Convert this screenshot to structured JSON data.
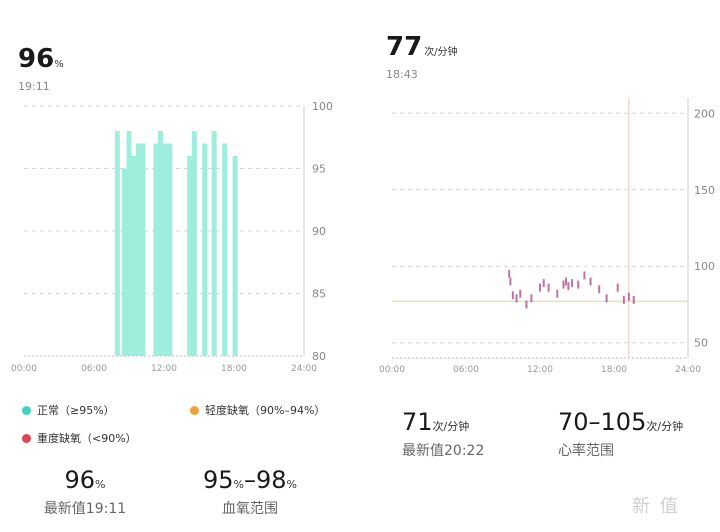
{
  "spo2": {
    "value": "96",
    "unit": "%",
    "time": "19:11",
    "legend": [
      {
        "label": "正常（≥95%）",
        "color": "#3dd6b8"
      },
      {
        "label": "轻度缺氧（90%–94%）",
        "color": "#f0a23a"
      },
      {
        "label": "重度缺氧（<90%）",
        "color": "#e0434f"
      }
    ],
    "stats": [
      {
        "value": "96",
        "unit": "%",
        "label": "最新值19:11"
      },
      {
        "value": "95",
        "unit": "%",
        "value2": "98",
        "unit2": "%",
        "label": "血氧范围"
      }
    ]
  },
  "heart": {
    "value": "77",
    "unit": "次/分钟",
    "time": "18:43",
    "stats": [
      {
        "value": "71",
        "unit": "次/分钟",
        "label": "最新值20:22"
      },
      {
        "value": "70–105",
        "unit": "次/分钟",
        "label": "心率范围"
      }
    ]
  },
  "watermark": "新 值",
  "chart_data": [
    {
      "type": "bar",
      "x_ticks": [
        "00:00",
        "06:00",
        "12:00",
        "18:00",
        "24:00"
      ],
      "y_ticks": [
        "80",
        "85",
        "90",
        "95",
        "100"
      ],
      "ylim": [
        80,
        100
      ],
      "xlim": [
        0,
        24
      ],
      "bar_color": "#9eeedd",
      "bars": [
        {
          "x": 8.0,
          "y": 98
        },
        {
          "x": 8.6,
          "y": 95
        },
        {
          "x": 9.0,
          "y": 98
        },
        {
          "x": 9.4,
          "y": 96
        },
        {
          "x": 9.8,
          "y": 97
        },
        {
          "x": 10.2,
          "y": 97
        },
        {
          "x": 11.3,
          "y": 97
        },
        {
          "x": 11.7,
          "y": 98
        },
        {
          "x": 12.1,
          "y": 97
        },
        {
          "x": 12.5,
          "y": 97
        },
        {
          "x": 14.2,
          "y": 96
        },
        {
          "x": 14.6,
          "y": 98
        },
        {
          "x": 15.5,
          "y": 97
        },
        {
          "x": 16.3,
          "y": 98
        },
        {
          "x": 17.2,
          "y": 97
        },
        {
          "x": 18.1,
          "y": 96
        }
      ]
    },
    {
      "type": "scatter",
      "x_ticks": [
        "00:00",
        "06:00",
        "12:00",
        "18:00",
        "24:00"
      ],
      "y_ticks": [
        "50",
        "100",
        "150",
        "200"
      ],
      "ylim": [
        40,
        210
      ],
      "xlim": [
        0,
        24
      ],
      "reference_y": 77,
      "cursor_x": 19.2,
      "point_color": "#b0508a",
      "reference_color": "#e6e3b3",
      "cursor_color": "#f2c7c7",
      "points": [
        {
          "x": 9.5,
          "y": 95
        },
        {
          "x": 9.6,
          "y": 90
        },
        {
          "x": 9.8,
          "y": 81
        },
        {
          "x": 10.1,
          "y": 79
        },
        {
          "x": 10.4,
          "y": 82
        },
        {
          "x": 10.9,
          "y": 75
        },
        {
          "x": 11.3,
          "y": 79
        },
        {
          "x": 12.0,
          "y": 86
        },
        {
          "x": 12.3,
          "y": 89
        },
        {
          "x": 12.7,
          "y": 86
        },
        {
          "x": 13.4,
          "y": 82
        },
        {
          "x": 13.9,
          "y": 88
        },
        {
          "x": 14.1,
          "y": 90
        },
        {
          "x": 14.3,
          "y": 87
        },
        {
          "x": 14.6,
          "y": 89
        },
        {
          "x": 15.1,
          "y": 88
        },
        {
          "x": 15.6,
          "y": 94
        },
        {
          "x": 16.1,
          "y": 90
        },
        {
          "x": 16.8,
          "y": 85
        },
        {
          "x": 17.4,
          "y": 79
        },
        {
          "x": 18.3,
          "y": 86
        },
        {
          "x": 18.8,
          "y": 78
        },
        {
          "x": 19.2,
          "y": 80
        },
        {
          "x": 19.6,
          "y": 78
        }
      ]
    }
  ]
}
